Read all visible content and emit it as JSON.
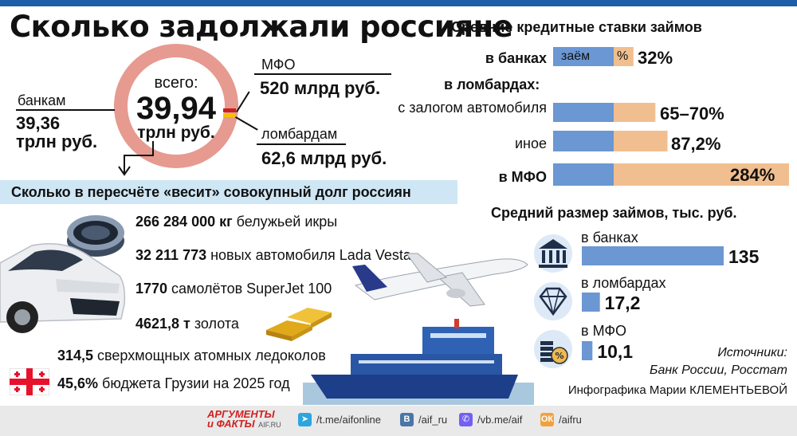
{
  "title": "Сколько задолжали россияне",
  "total": {
    "label": "всего:",
    "value": "39,94",
    "unit": "трлн руб."
  },
  "banks": {
    "label": "банкам",
    "value": "39,36",
    "unit": "трлн руб."
  },
  "mfo": {
    "label": "МФО",
    "value": "520 млрд руб."
  },
  "pawnshops": {
    "label": "ломбардам",
    "value": "62,6 млрд руб."
  },
  "weight_section": {
    "title": "Сколько в пересчёте «весит» совокупный долг россиян",
    "items": [
      {
        "bold": "266 284 000 кг",
        "text": " белужьей икры"
      },
      {
        "bold": "32 211 773",
        "text": " новых автомобиля Lada Vesta"
      },
      {
        "bold": "1770",
        "text": " самолётов SuperJet 100"
      },
      {
        "bold": "4621,8 т",
        "text": " золота"
      },
      {
        "bold": "314,5",
        "text": " сверхмощных атомных ледоколов"
      },
      {
        "bold": "45,6%",
        "text": " бюджета Грузии на 2025 год"
      }
    ]
  },
  "rates": {
    "title": "Средние кредитные ставки займов",
    "legend_loan": "заём",
    "legend_pct": "%",
    "pawn_header": "в ломбардах:",
    "rows": [
      {
        "label": "в банках",
        "value": "32%"
      },
      {
        "label": "с залогом автомобиля",
        "value": "65–70%"
      },
      {
        "label": "иное",
        "value": "87,2%"
      },
      {
        "label": "в МФО",
        "value": "284%"
      }
    ]
  },
  "sizes": {
    "title": "Средний размер займов, тыс. руб.",
    "rows": [
      {
        "label": "в банках",
        "value": "135"
      },
      {
        "label": "в ломбардах",
        "value": "17,2"
      },
      {
        "label": "в МФО",
        "value": "10,1"
      }
    ]
  },
  "sources": {
    "label": "Источники:",
    "text": "Банк России, Росстат"
  },
  "credit": "Инфографика Марии КЛЕМЕНТЬЕВОЙ",
  "footer": {
    "logo_top": "АРГУМЕНТЫ",
    "logo_bottom": "и ФАКТЫ",
    "logo_site": "AIF.RU",
    "links": [
      "/t.me/aifonline",
      "/aif_ru",
      "/vb.me/aif",
      "/aifru"
    ]
  },
  "chart_data": [
    {
      "type": "bar",
      "title": "Средние кредитные ставки займов",
      "categories": [
        "в банках",
        "с залогом автомобиля",
        "иное",
        "в МФО"
      ],
      "series": [
        {
          "name": "%",
          "values": [
            32,
            67.5,
            87.2,
            284
          ]
        }
      ],
      "value_labels": [
        "32%",
        "65–70%",
        "87,2%",
        "284%"
      ],
      "colors": {
        "loan": "#6b97d3",
        "interest": "#f1bf8f"
      }
    },
    {
      "type": "bar",
      "title": "Средний размер займов, тыс. руб.",
      "categories": [
        "в банках",
        "в ломбардах",
        "в МФО"
      ],
      "values": [
        135,
        17.2,
        10.1
      ],
      "color": "#6b97d3"
    }
  ]
}
